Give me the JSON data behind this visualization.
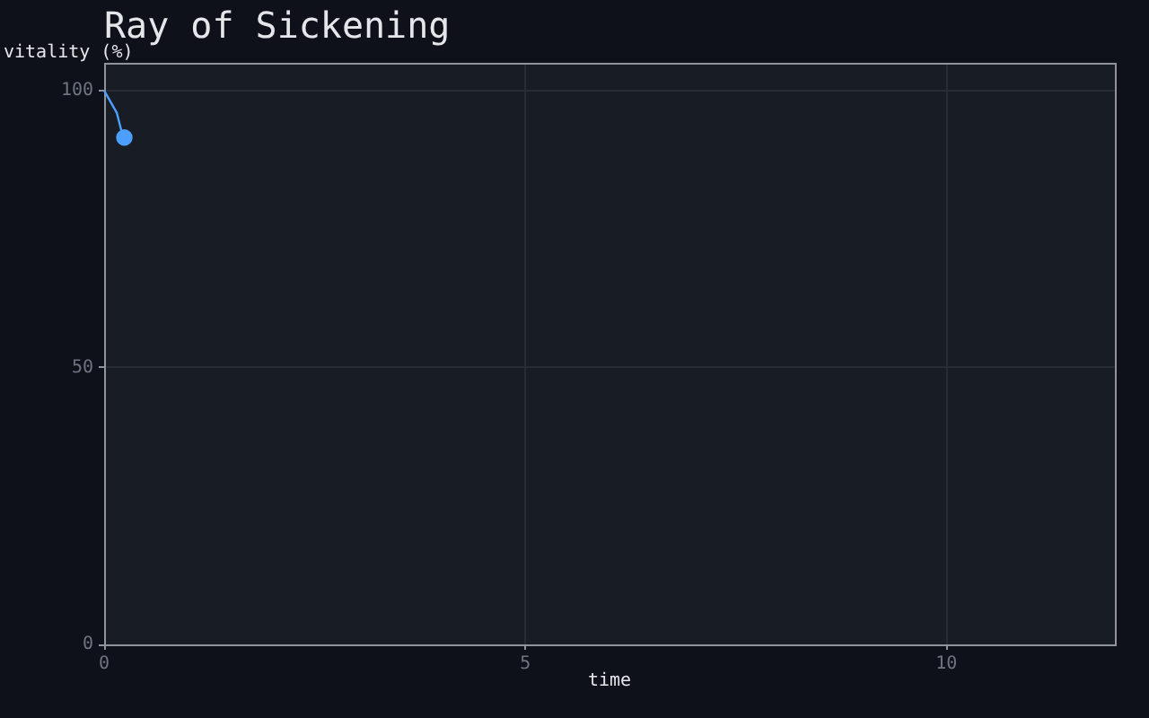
{
  "chart_data": {
    "type": "line",
    "title": "Ray of Sickening",
    "xlabel": "time",
    "ylabel": "vitality (%)",
    "xlim": [
      0,
      12
    ],
    "xticks": [
      0,
      5,
      10
    ],
    "ylim": [
      0,
      105
    ],
    "yticks": [
      0,
      50,
      100
    ],
    "grid": true,
    "series": [
      {
        "color": "#4d9fff",
        "x": [
          0,
          0.15,
          0.2,
          0.24
        ],
        "values": [
          100,
          96,
          93,
          91.5
        ],
        "marker": "none"
      },
      {
        "type": "scatter",
        "color": "#4d9fff",
        "x": [
          0.24
        ],
        "values": [
          91.5
        ],
        "marker": "circle"
      }
    ]
  }
}
